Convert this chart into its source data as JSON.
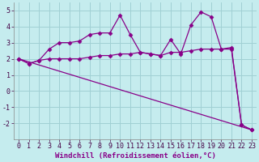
{
  "background_color": "#c5ecee",
  "grid_color": "#a0d0d4",
  "line_color": "#880088",
  "marker_style": "D",
  "marker_size": 2.5,
  "line_width": 0.9,
  "xlabel": "Windchill (Refroidissement éolien,°C)",
  "xlabel_fontsize": 6.5,
  "tick_fontsize": 6,
  "ylim": [
    -3,
    5.5
  ],
  "xlim": [
    -0.5,
    23.5
  ],
  "yticks": [
    -2,
    -1,
    0,
    1,
    2,
    3,
    4,
    5
  ],
  "xticks": [
    0,
    1,
    2,
    3,
    4,
    5,
    6,
    7,
    8,
    9,
    10,
    11,
    12,
    13,
    14,
    15,
    16,
    17,
    18,
    19,
    20,
    21,
    22,
    23
  ],
  "series": [
    {
      "x": [
        0,
        1,
        2,
        3,
        4,
        5,
        6,
        7,
        8,
        9,
        10,
        11,
        12,
        13,
        14,
        15,
        16,
        17,
        18,
        19,
        20,
        21,
        22,
        23
      ],
      "y": [
        2.0,
        1.7,
        1.9,
        2.6,
        3.0,
        3.0,
        3.1,
        3.5,
        3.6,
        3.6,
        4.7,
        3.5,
        2.4,
        2.3,
        2.2,
        3.2,
        2.3,
        4.1,
        4.9,
        4.6,
        2.6,
        2.7,
        -2.1,
        -2.4
      ],
      "has_markers": true
    },
    {
      "x": [
        0,
        1,
        2,
        3,
        4,
        5,
        6,
        7,
        8,
        9,
        10,
        11,
        12,
        13,
        14,
        15,
        16,
        17,
        18,
        19,
        20,
        21,
        22,
        23
      ],
      "y": [
        2.0,
        1.7,
        1.9,
        2.0,
        2.0,
        2.0,
        2.0,
        2.1,
        2.2,
        2.2,
        2.3,
        2.3,
        2.4,
        2.3,
        2.2,
        2.4,
        2.4,
        2.5,
        2.6,
        2.6,
        2.6,
        2.6,
        -2.1,
        -2.4
      ],
      "has_markers": true
    },
    {
      "x": [
        0,
        23
      ],
      "y": [
        2.0,
        -2.4
      ],
      "has_markers": false
    }
  ]
}
